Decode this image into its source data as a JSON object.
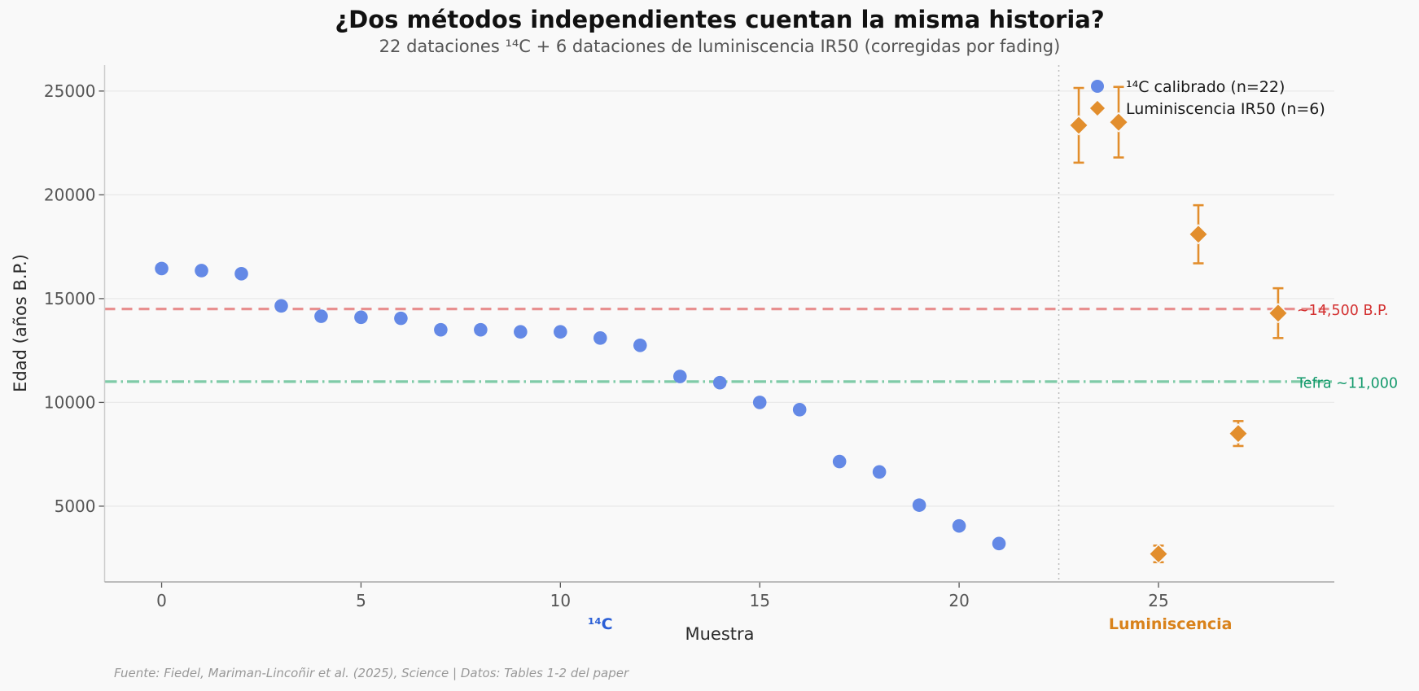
{
  "title": "¿Dos métodos independientes cuentan la misma historia?",
  "subtitle": "22 dataciones ¹⁴C + 6 dataciones de luminiscencia IR50 (corregidas por fading)",
  "footer": "Fuente: Fiedel, Mariman-Lincoñir et al. (2025), Science | Datos: Tables 1-2 del paper",
  "colors": {
    "background": "#f9f9f9",
    "grid": "#e9e9e9",
    "spine_left": "#cccccc",
    "spine_bottom": "#a8a8a8",
    "tick": "#555555",
    "separator": "#bdbdbd",
    "c14_blue": "#6489e6",
    "ir50_orange": "#e28e2d",
    "ref_red_line": "#e89090",
    "ref_red_text": "#d32f2f",
    "ref_green_line": "#7fcba8",
    "ref_green_text": "#12996b"
  },
  "legend": {
    "entries": [
      {
        "label": "¹⁴C calibrado (n=22)",
        "marker": "circle"
      },
      {
        "label": "Luminiscencia IR50 (n=6)",
        "marker": "diamond"
      }
    ]
  },
  "chart_data": {
    "type": "scatter",
    "xlabel": "Muestra",
    "ylabel": "Edad (años B.P.)",
    "xlim": [
      -1.43,
      29.41
    ],
    "ylim": [
      1350,
      26250
    ],
    "x_ticks": [
      0,
      5,
      10,
      15,
      20,
      25
    ],
    "y_ticks": [
      5000,
      10000,
      15000,
      20000,
      25000
    ],
    "grid": "horizontal",
    "legend_position": "upper-right",
    "series": [
      {
        "name": "¹⁴C calibrado (n=22)",
        "marker": "circle",
        "color": "#6489e6",
        "x": [
          0,
          1,
          2,
          3,
          4,
          5,
          6,
          7,
          8,
          9,
          10,
          11,
          12,
          13,
          14,
          15,
          16,
          17,
          18,
          19,
          20,
          21
        ],
        "y": [
          16450,
          16350,
          16200,
          14650,
          14150,
          14100,
          14050,
          13500,
          13500,
          13400,
          13400,
          13100,
          12750,
          11250,
          10950,
          10000,
          9650,
          7150,
          6650,
          5050,
          4050,
          3200
        ]
      },
      {
        "name": "Luminiscencia IR50 (n=6)",
        "marker": "diamond",
        "color": "#e28e2d",
        "x": [
          23,
          24,
          25,
          26,
          27,
          28
        ],
        "y": [
          23350,
          23500,
          2700,
          18100,
          8500,
          14300
        ],
        "yerr": [
          1800,
          1700,
          400,
          1400,
          600,
          1200
        ]
      }
    ],
    "reference_lines": [
      {
        "y": 14500,
        "style": "dashed",
        "line_color": "#e89090",
        "label": "~14,500 B.P.",
        "label_color": "#d32f2f"
      },
      {
        "y": 11000,
        "style": "dashdot",
        "line_color": "#7fcba8",
        "label": "Tefra ~11,000",
        "label_color": "#12996b"
      }
    ],
    "separator_x": 22.5,
    "group_labels": [
      {
        "text": "¹⁴C",
        "x": 11,
        "color": "#2b5fd6"
      },
      {
        "text": "Luminiscencia",
        "x": 25.3,
        "color": "#d9821b"
      }
    ]
  }
}
